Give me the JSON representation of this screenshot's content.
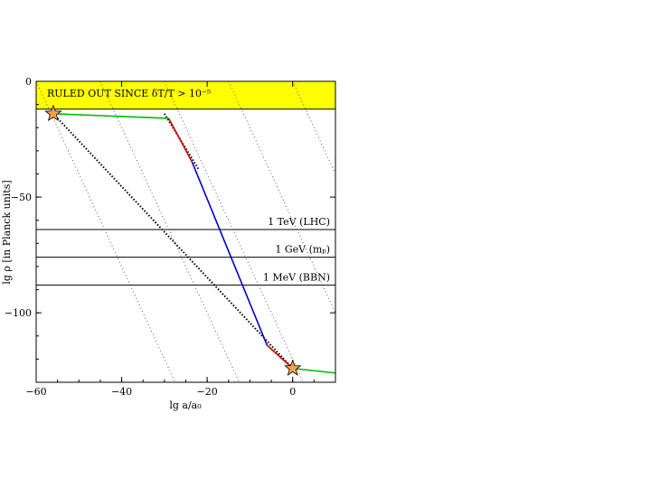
{
  "chart_data": {
    "type": "line",
    "title": "",
    "xlabel": "lg a/a₀",
    "ylabel": "lg ρ [in Planck units]",
    "xlim": [
      -60,
      10
    ],
    "ylim": [
      -130,
      0
    ],
    "x_ticks": [
      {
        "value": -60,
        "label": "−60"
      },
      {
        "value": -40,
        "label": "−40"
      },
      {
        "value": -20,
        "label": "−20"
      },
      {
        "value": 0,
        "label": "0"
      }
    ],
    "y_ticks": [
      {
        "value": 0,
        "label": "0"
      },
      {
        "value": -50,
        "label": "−50"
      },
      {
        "value": -100,
        "label": "−100"
      }
    ],
    "excluded_region": {
      "label": "RULED OUT SINCE δT/T > 10⁻⁵",
      "y_from": -12,
      "y_to": 0,
      "color": "#ffff00"
    },
    "hatching": "dotted diagonal lines, slope −4 (radiation scaling)",
    "reference_levels": [
      {
        "label": "1 TeV (LHC)",
        "y": -64
      },
      {
        "label": "1 GeV (mₚ)",
        "y": -76
      },
      {
        "label": "1 MeV (BBN)",
        "y": -88
      }
    ],
    "series": [
      {
        "color": "#00bb00",
        "x": [
          -56,
          -29
        ],
        "y": [
          -14,
          -16
        ]
      },
      {
        "color": "#cc0000",
        "x": [
          -29,
          -23.5
        ],
        "y": [
          -16,
          -35
        ]
      },
      {
        "color": "#0000cc",
        "x": [
          -23.5,
          -6
        ],
        "y": [
          -35,
          -114
        ]
      },
      {
        "color": "#cc0000",
        "x": [
          -6,
          0
        ],
        "y": [
          -114,
          -124
        ]
      },
      {
        "color": "#00bb00",
        "x": [
          0,
          10
        ],
        "y": [
          -124,
          -126
        ]
      }
    ],
    "dotted_reference_lines": [
      {
        "x": [
          -56,
          0
        ],
        "y": [
          -14,
          -124
        ]
      },
      {
        "x": [
          -30,
          -22
        ],
        "y": [
          -14,
          -38
        ]
      }
    ],
    "markers": [
      {
        "type": "star",
        "x": -56,
        "y": -14,
        "color": "#f5a04a"
      },
      {
        "type": "star",
        "x": 0,
        "y": -124,
        "color": "#f5a04a"
      }
    ]
  }
}
